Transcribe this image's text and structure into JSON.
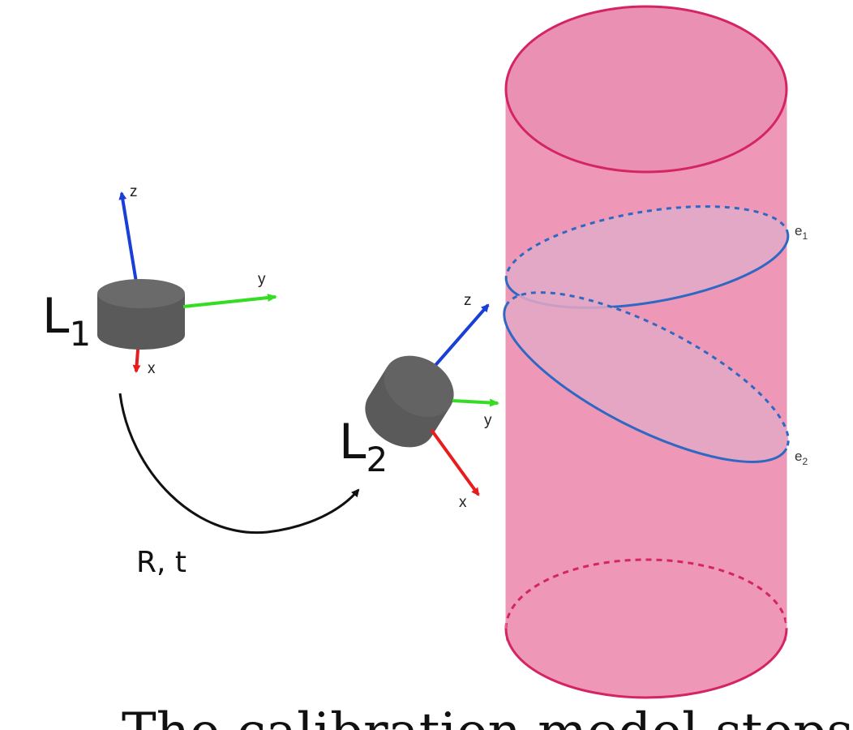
{
  "colors": {
    "cylinder_fill": "#ee97b6",
    "cylinder_stroke": "#d42464",
    "ellipse_stroke": "#2f68c3",
    "ellipse_fill": "#e3a8c6",
    "sensor_body": "#5a5a5a",
    "axis_x": "#e81c1c",
    "axis_y": "#33dd22",
    "axis_z": "#1a3fd6"
  },
  "sensor1": {
    "name": "L",
    "subscript": "1",
    "axes": {
      "x": "x",
      "y": "y",
      "z": "z"
    }
  },
  "sensor2": {
    "name": "L",
    "subscript": "2",
    "axes": {
      "x": "x",
      "y": "y",
      "z": "z"
    }
  },
  "transform": {
    "label": "R, t"
  },
  "ellipses": [
    {
      "name": "e",
      "subscript": "1"
    },
    {
      "name": "e",
      "subscript": "2"
    }
  ],
  "caption": "The calibration model steps involve"
}
